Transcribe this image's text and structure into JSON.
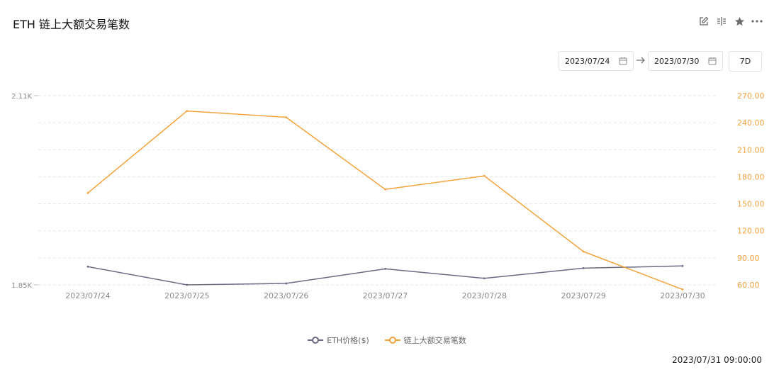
{
  "header": {
    "title": "ETH 链上大额交易笔数"
  },
  "toolbar": {
    "icons": [
      "edit-icon",
      "compare-icon",
      "star-icon",
      "more-icon"
    ]
  },
  "date_range": {
    "start": "2023/07/24",
    "end": "2023/07/30",
    "period_button": "7D"
  },
  "footer": {
    "timestamp": "2023/07/31 09:00:00"
  },
  "colors": {
    "eth_price": "#6b6b85",
    "large_tx": "#f5a33d",
    "grid": "#e6e6e6",
    "axis_text_left": "#8a8a8a",
    "axis_text_right": "#f5a33d"
  },
  "chart_data": {
    "type": "line",
    "title": "ETH 链上大额交易笔数",
    "x": [
      "2023/07/24",
      "2023/07/25",
      "2023/07/26",
      "2023/07/27",
      "2023/07/28",
      "2023/07/29",
      "2023/07/30"
    ],
    "left_axis": {
      "ticks": [
        "2.11K",
        "1.85K"
      ],
      "range": [
        1850,
        2110
      ]
    },
    "right_axis": {
      "ticks": [
        "270.00",
        "240.00",
        "210.00",
        "180.00",
        "150.00",
        "120.00",
        "90.00",
        "60.00"
      ],
      "range": [
        60,
        270
      ]
    },
    "grid": true,
    "legend_position": "bottom",
    "series": [
      {
        "name": "ETH价格($)",
        "axis": "left",
        "color": "#6b6b85",
        "values": [
          1875,
          1850,
          1852,
          1872,
          1859,
          1873,
          1876
        ]
      },
      {
        "name": "链上大额交易笔数",
        "axis": "right",
        "color": "#f5a33d",
        "values": [
          162,
          253,
          246,
          166,
          181,
          97,
          55
        ]
      }
    ],
    "legend": [
      "ETH价格($)",
      "链上大额交易笔数"
    ]
  }
}
